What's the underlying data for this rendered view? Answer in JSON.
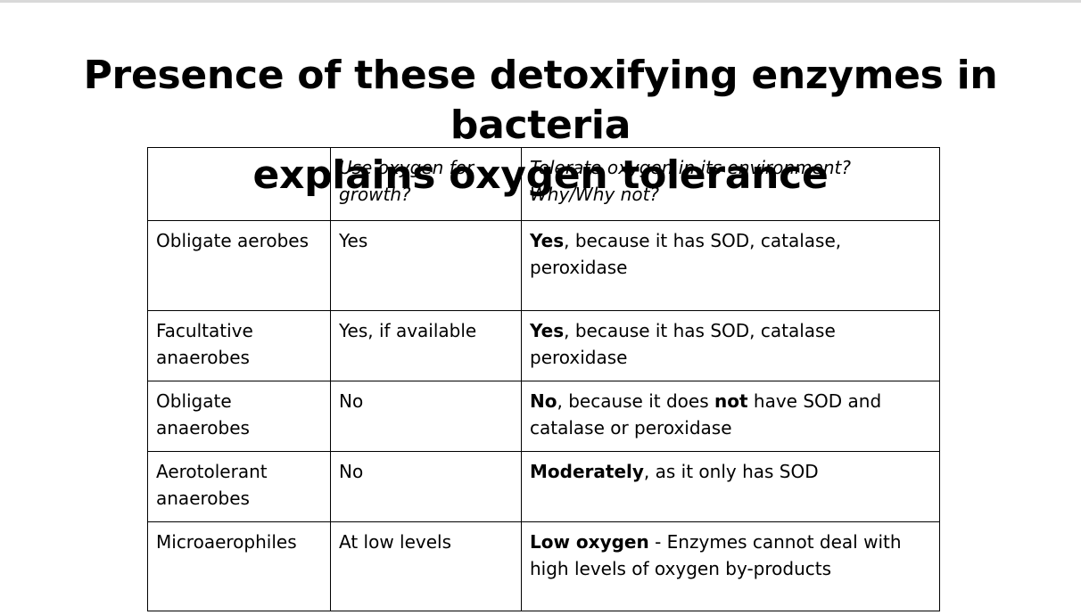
{
  "title": {
    "line1": "Presence of these detoxifying enzymes in bacteria",
    "line2": "explains oxygen tolerance"
  },
  "table": {
    "headers": [
      "",
      "Use oxygen for growth?",
      "Tolerate oxygen in its environment? Why/Why not?"
    ],
    "rows": [
      {
        "organism": "Obligate aerobes",
        "use_oxygen": "Yes",
        "tolerance": [
          {
            "text": "Yes",
            "bold": true
          },
          {
            "text": ", because it has SOD, catalase, peroxidase",
            "bold": false
          }
        ]
      },
      {
        "organism": "Facultative anaerobes",
        "use_oxygen": "Yes, if available",
        "tolerance": [
          {
            "text": "Yes",
            "bold": true
          },
          {
            "text": ", because it has SOD, catalase peroxidase",
            "bold": false
          }
        ]
      },
      {
        "organism": "Obligate anaerobes",
        "use_oxygen": "No",
        "tolerance": [
          {
            "text": "No",
            "bold": true
          },
          {
            "text": ", because it does ",
            "bold": false
          },
          {
            "text": "not",
            "bold": true
          },
          {
            "text": " have SOD and catalase or peroxidase",
            "bold": false
          }
        ]
      },
      {
        "organism": "Aerotolerant anaerobes",
        "use_oxygen": "No",
        "tolerance": [
          {
            "text": "Moderately",
            "bold": true
          },
          {
            "text": ", as it only has SOD",
            "bold": false
          }
        ]
      },
      {
        "organism": "Microaerophiles",
        "use_oxygen": "At low levels",
        "tolerance": [
          {
            "text": "Low oxygen",
            "bold": true
          },
          {
            "text": " - Enzymes cannot deal with high levels of oxygen by-products",
            "bold": false
          }
        ]
      }
    ]
  }
}
